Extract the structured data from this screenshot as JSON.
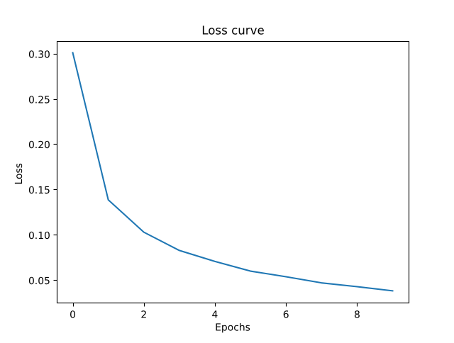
{
  "chart_data": {
    "type": "line",
    "title": "Loss curve",
    "xlabel": "Epochs",
    "ylabel": "Loss",
    "x": [
      0,
      1,
      2,
      3,
      4,
      5,
      6,
      7,
      8,
      9
    ],
    "series": [
      {
        "name": "loss",
        "values": [
          0.301,
          0.1385,
          0.1028,
          0.0826,
          0.0705,
          0.0598,
          0.0536,
          0.0468,
          0.0426,
          0.038
        ],
        "color": "#1f77b4"
      }
    ],
    "xticks": [
      0,
      2,
      4,
      6,
      8
    ],
    "xtick_labels": [
      "0",
      "2",
      "4",
      "6",
      "8"
    ],
    "yticks": [
      0.05,
      0.1,
      0.15,
      0.2,
      0.25,
      0.3
    ],
    "ytick_labels": [
      "0.05",
      "0.10",
      "0.15",
      "0.20",
      "0.25",
      "0.30"
    ],
    "xlim": [
      -0.45,
      9.45
    ],
    "ylim": [
      0.02485,
      0.31415
    ],
    "grid": false,
    "legend_position": "none",
    "background_color": "#ffffff",
    "text_color": "#000000",
    "spine_color": "#000000"
  }
}
